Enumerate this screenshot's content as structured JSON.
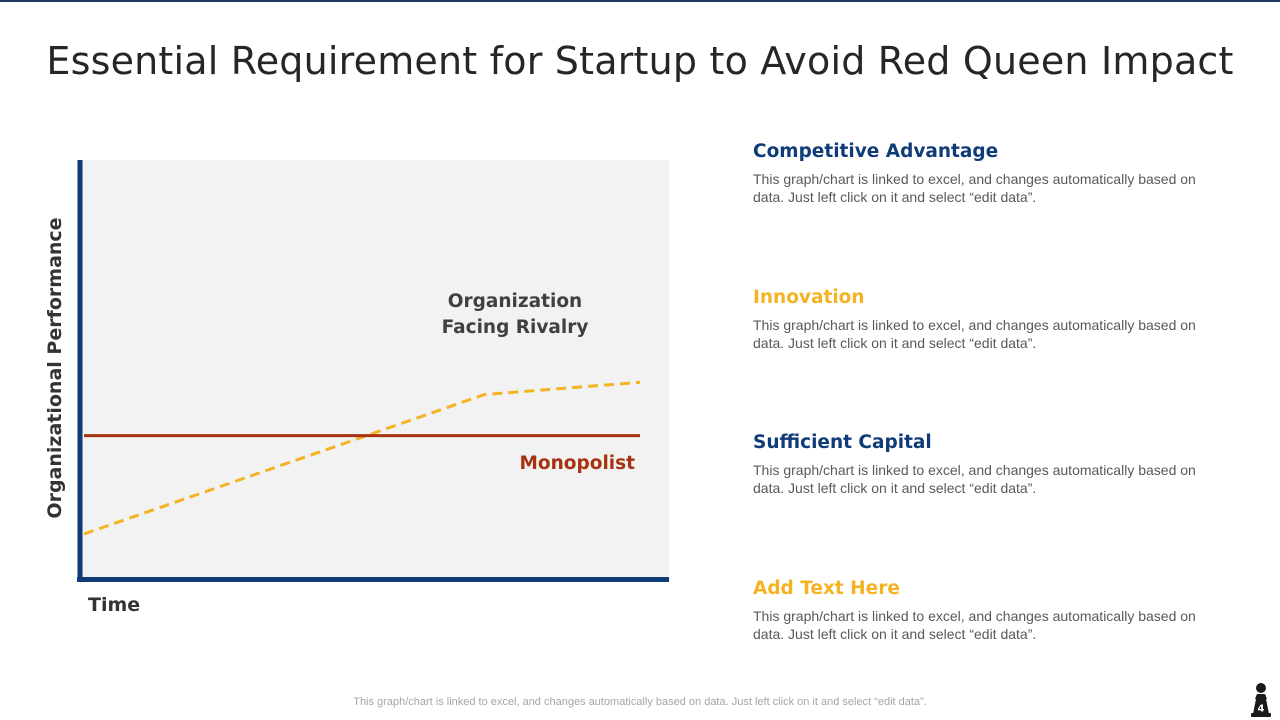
{
  "title": "Essential Requirement for Startup to Avoid Red Queen Impact",
  "colors": {
    "navy": "#0f3b78",
    "gold": "#f5b324",
    "rust": "#a6320f",
    "panel": "#f2f2f2",
    "text_gray": "#595959"
  },
  "chart_data": {
    "type": "line",
    "title": "",
    "xlabel": "Time",
    "ylabel": "Organizational Performance",
    "xlim": [
      0,
      10
    ],
    "ylim": [
      0,
      10
    ],
    "grid": false,
    "series": [
      {
        "name": "Organization Facing Rivalry",
        "style": "dashed",
        "color": "#f5b324",
        "x": [
          0,
          7.2,
          10
        ],
        "y": [
          1,
          4.4,
          4.7
        ]
      },
      {
        "name": "Monopolist",
        "style": "solid",
        "color": "#a6320f",
        "x": [
          0,
          10
        ],
        "y": [
          3.4,
          3.4
        ]
      }
    ],
    "annotations": [
      {
        "text_lines": [
          "Organization",
          "Facing Rivalry"
        ],
        "series": "Organization Facing Rivalry",
        "color": "#404040"
      },
      {
        "text": "Monopolist",
        "series": "Monopolist",
        "color": "#a6320f"
      }
    ]
  },
  "items": [
    {
      "heading": "Competitive Advantage",
      "color": "#0f3b78",
      "text_line1": "This graph/chart is linked to excel, and changes automatically based on",
      "text_line2": "data. Just left click on it and select “edit data”."
    },
    {
      "heading": "Innovation",
      "color": "#f5b324",
      "text_line1": "This graph/chart is linked to excel, and changes automatically based on",
      "text_line2": "data. Just left click on it and select “edit data”."
    },
    {
      "heading": "Sufficient Capital",
      "color": "#0f3b78",
      "text_line1": "This graph/chart is linked to excel, and changes automatically based on",
      "text_line2": "data. Just left click on it and select “edit data”."
    },
    {
      "heading": "Add Text Here",
      "color": "#f5b324",
      "text_line1": "This graph/chart is linked to excel, and changes automatically based on",
      "text_line2": "data. Just left click on it and select “edit data”."
    }
  ],
  "footer": "This graph/chart is linked to excel,  and changes automatically based on data. Just left click on it and select “edit data”.",
  "page_number": "4"
}
